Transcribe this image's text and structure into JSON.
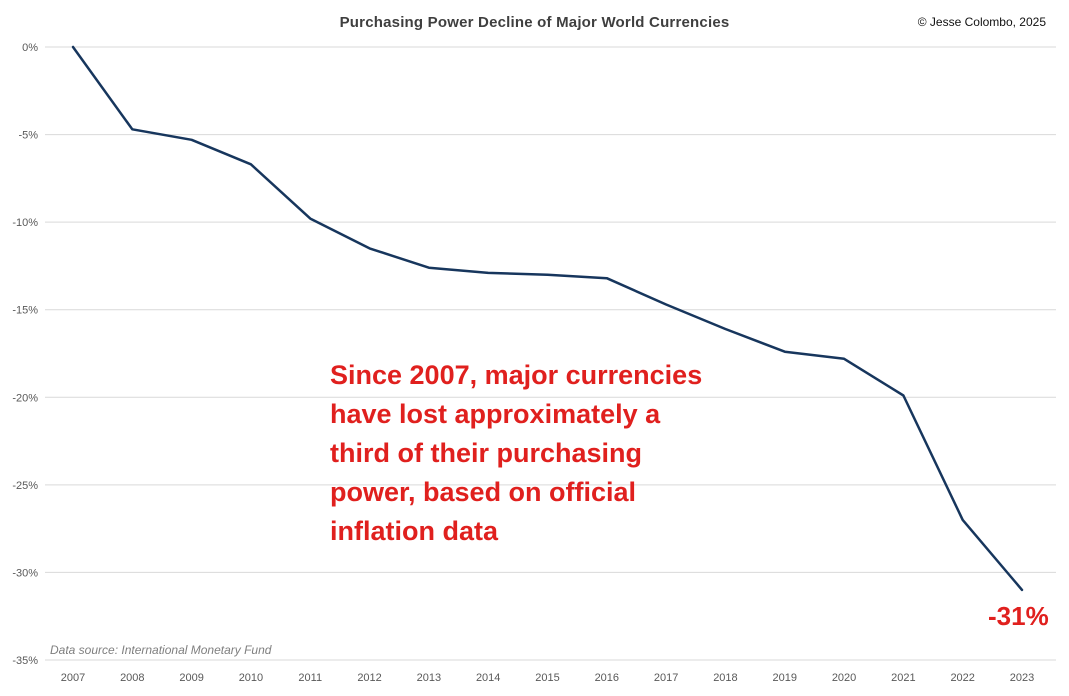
{
  "header": {
    "title": "Purchasing Power Decline of Major World Currencies",
    "copyright": "© Jesse Colombo, 2025"
  },
  "annotation": {
    "text": "Since 2007, major currencies\nhave lost approximately a\nthird of their purchasing\npower, based on official\ninflation data",
    "color": "#e0201e"
  },
  "source_note": "Data source: International Monetary Fund",
  "chart_data": {
    "type": "line",
    "title": "Purchasing Power Decline of Major World Currencies",
    "x": [
      2007,
      2008,
      2009,
      2010,
      2011,
      2012,
      2013,
      2014,
      2015,
      2016,
      2017,
      2018,
      2019,
      2020,
      2021,
      2022,
      2023
    ],
    "series": [
      {
        "name": "Purchasing power decline of major world currencies",
        "values": [
          0,
          -4.7,
          -5.3,
          -6.7,
          -9.8,
          -11.5,
          -12.6,
          -12.9,
          -13.0,
          -13.2,
          -14.7,
          -16.1,
          -17.4,
          -17.8,
          -19.9,
          -27.0,
          -31.0
        ]
      }
    ],
    "xlabel": "",
    "ylabel": "",
    "ylim": [
      -35,
      0
    ],
    "yticks": [
      0,
      -5,
      -10,
      -15,
      -20,
      -25,
      -30,
      -35
    ],
    "ytick_labels": [
      "0%",
      "-5%",
      "-10%",
      "-15%",
      "-20%",
      "-25%",
      "-30%",
      "-35%"
    ],
    "grid": true,
    "legend": "none",
    "line_color": "#17365d",
    "grid_color": "#d9d9d9",
    "tick_color": "#595959",
    "end_label": "-31%"
  }
}
